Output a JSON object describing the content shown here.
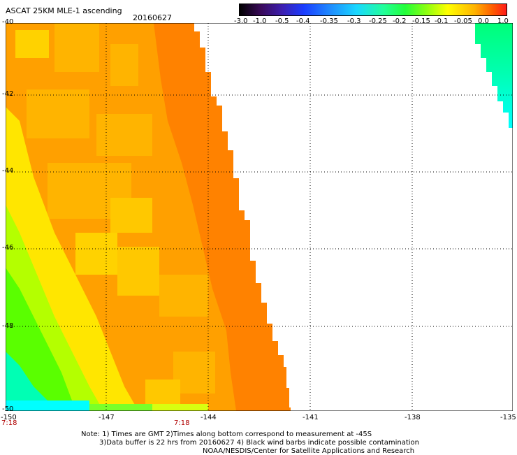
{
  "header": {
    "title": "ASCAT 25KM MLE-1 ascending",
    "date": "20160627"
  },
  "colorbar": {
    "labels": [
      "-3.0",
      "-1.0",
      "-0.5",
      "-0.4",
      "-0.35",
      "-0.3",
      "-0.25",
      "-0.2",
      "-0.15",
      "-0.1",
      "-0.05",
      "0.0",
      "1.0"
    ]
  },
  "map": {
    "lat_labels": [
      "-40",
      "-42",
      "-44",
      "-46",
      "-48",
      "-50"
    ],
    "lon_labels": [
      "-150",
      "-147",
      "-144",
      "-141",
      "-138",
      "-135"
    ],
    "time_labels": [
      "7:18",
      "7:18"
    ],
    "colors": {
      "deep_orange": "#ff8200",
      "orange": "#ffa000",
      "light_orange": "#ffb400",
      "yellow": "#ffe000",
      "lime": "#b4ff00",
      "green": "#5aff00",
      "aqua": "#00ffb4",
      "cyan": "#00ffff"
    }
  },
  "notes": {
    "line1": "Note: 1) Times are GMT 2)Times along bottom correspond to measurement at -45S",
    "line2": "3)Data buffer is 22 hrs from 20160627 4) Black wind barbs indicate possible contamination",
    "line3": "NOAA/NESDIS/Center for Satellite Applications and Research"
  }
}
